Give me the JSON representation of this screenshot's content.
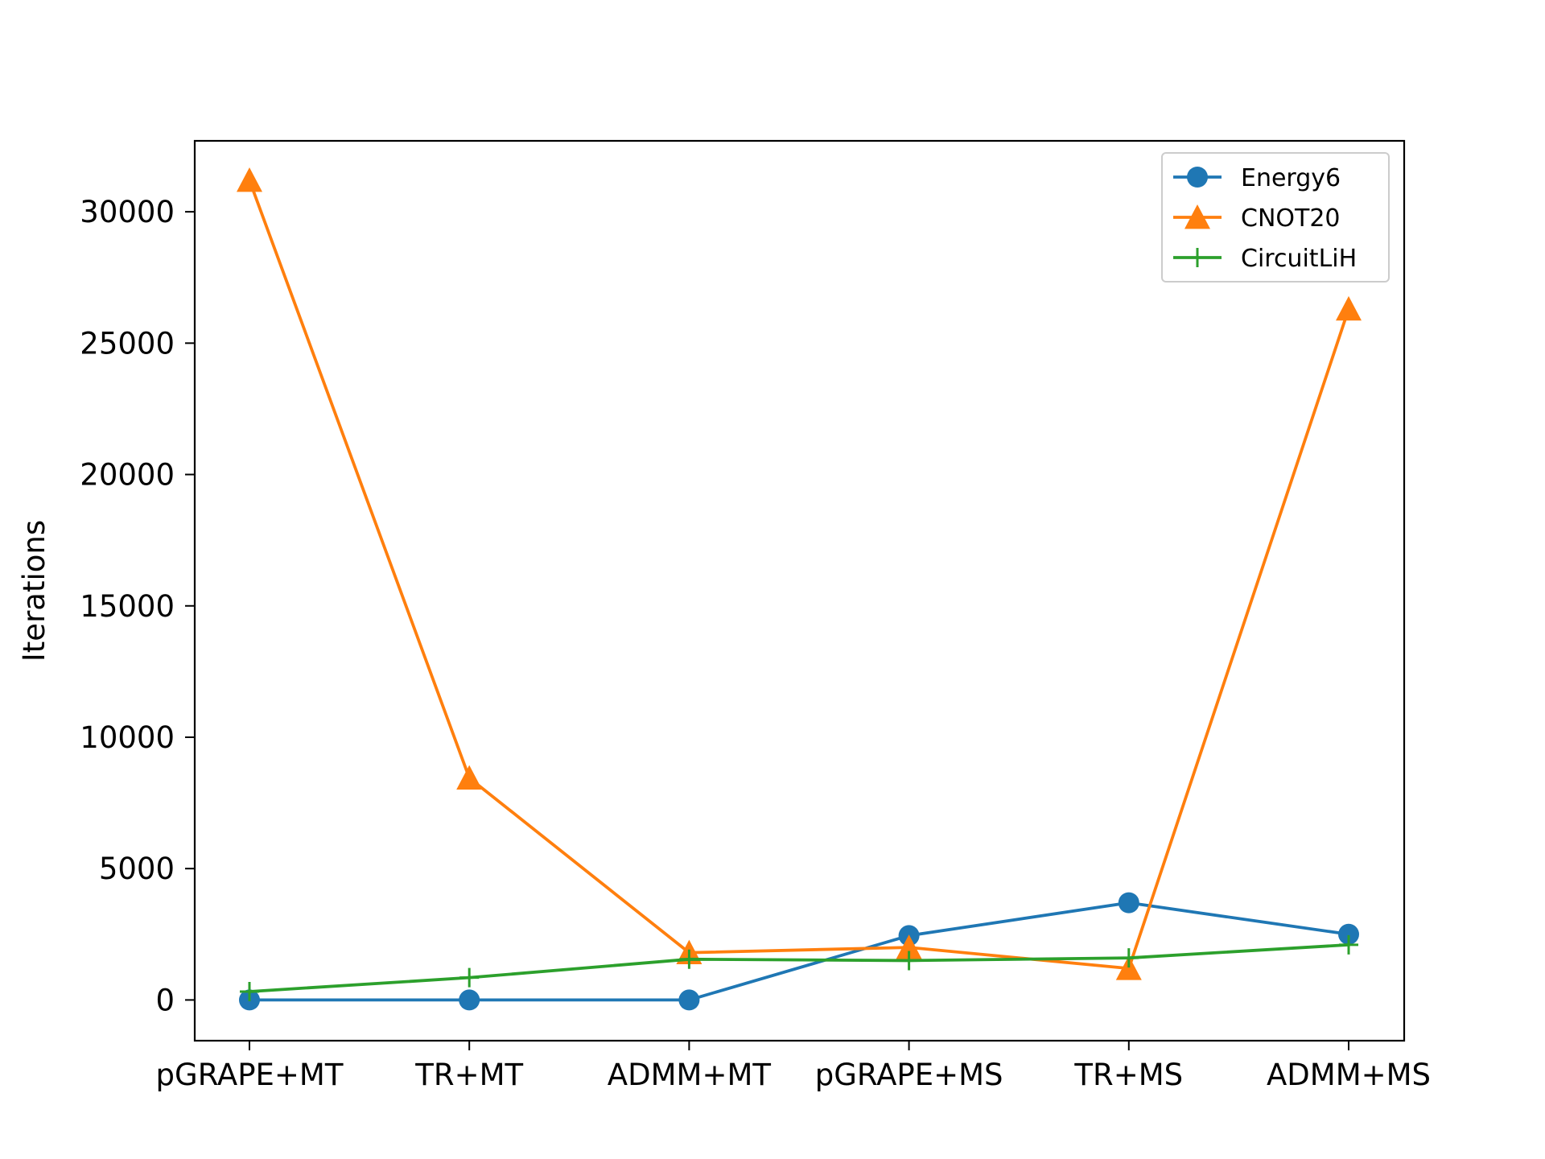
{
  "chart_data": {
    "type": "line",
    "title": "",
    "xlabel": "",
    "ylabel": "Iterations",
    "categories": [
      "pGRAPE+MT",
      "TR+MT",
      "ADMM+MT",
      "pGRAPE+MS",
      "TR+MS",
      "ADMM+MS"
    ],
    "ylim": [
      -1550,
      32700
    ],
    "yticks": [
      0,
      5000,
      10000,
      15000,
      20000,
      25000,
      30000
    ],
    "ytick_labels": [
      "0",
      "5000",
      "10000",
      "15000",
      "20000",
      "25000",
      "30000"
    ],
    "grid": false,
    "legend_position": "top-right",
    "series": [
      {
        "name": "Energy6",
        "color": "#1f77b4",
        "marker": "circle",
        "values": [
          0,
          0,
          0,
          2450,
          3700,
          2500
        ]
      },
      {
        "name": "CNOT20",
        "color": "#ff7f0e",
        "marker": "triangle",
        "values": [
          31200,
          8450,
          1800,
          2000,
          1200,
          26300
        ]
      },
      {
        "name": "CircuitLiH",
        "color": "#2ca02c",
        "marker": "plus",
        "values": [
          320,
          850,
          1550,
          1500,
          1600,
          2100
        ]
      }
    ]
  }
}
